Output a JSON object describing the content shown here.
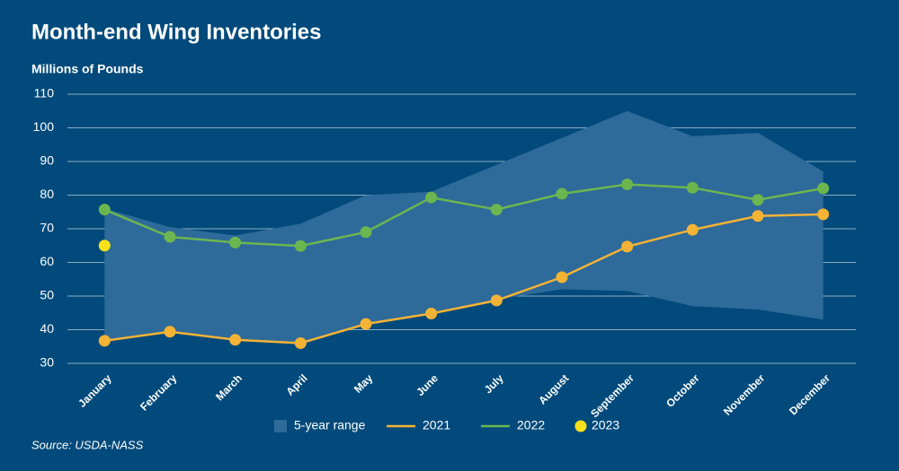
{
  "chart_data": {
    "type": "line",
    "title": "Month-end Wing Inventories",
    "y_label": "Millions of Pounds",
    "source": "Source: USDA-NASS",
    "categories": [
      "January",
      "February",
      "March",
      "April",
      "May",
      "June",
      "July",
      "August",
      "September",
      "October",
      "November",
      "December"
    ],
    "series": [
      {
        "name": "5-year range",
        "color": "#2e6a9a",
        "upper": [
          76,
          70.5,
          68,
          71.5,
          80,
          81,
          89,
          97,
          105,
          97.5,
          98.5,
          87
        ],
        "lower": [
          37,
          39,
          37,
          36,
          41.5,
          45,
          49,
          52,
          51.5,
          47,
          46,
          43
        ]
      },
      {
        "name": "2021",
        "color": "#f5b335",
        "values": [
          36.7,
          39.4,
          37,
          36,
          41.7,
          44.8,
          48.7,
          55.6,
          64.7,
          69.7,
          73.8,
          74.3
        ]
      },
      {
        "name": "2022",
        "color": "#6cb650",
        "values": [
          75.7,
          67.6,
          65.9,
          64.9,
          69,
          79.3,
          75.7,
          80.4,
          83.2,
          82.2,
          78.6,
          82
        ]
      },
      {
        "name": "2023",
        "color": "#f8e11a",
        "values": [
          65,
          null,
          null,
          null,
          null,
          null,
          null,
          null,
          null,
          null,
          null,
          null
        ]
      }
    ],
    "ylim": [
      30,
      110
    ],
    "yticks": [
      30,
      40,
      50,
      60,
      70,
      80,
      90,
      100,
      110
    ],
    "grid": true
  }
}
